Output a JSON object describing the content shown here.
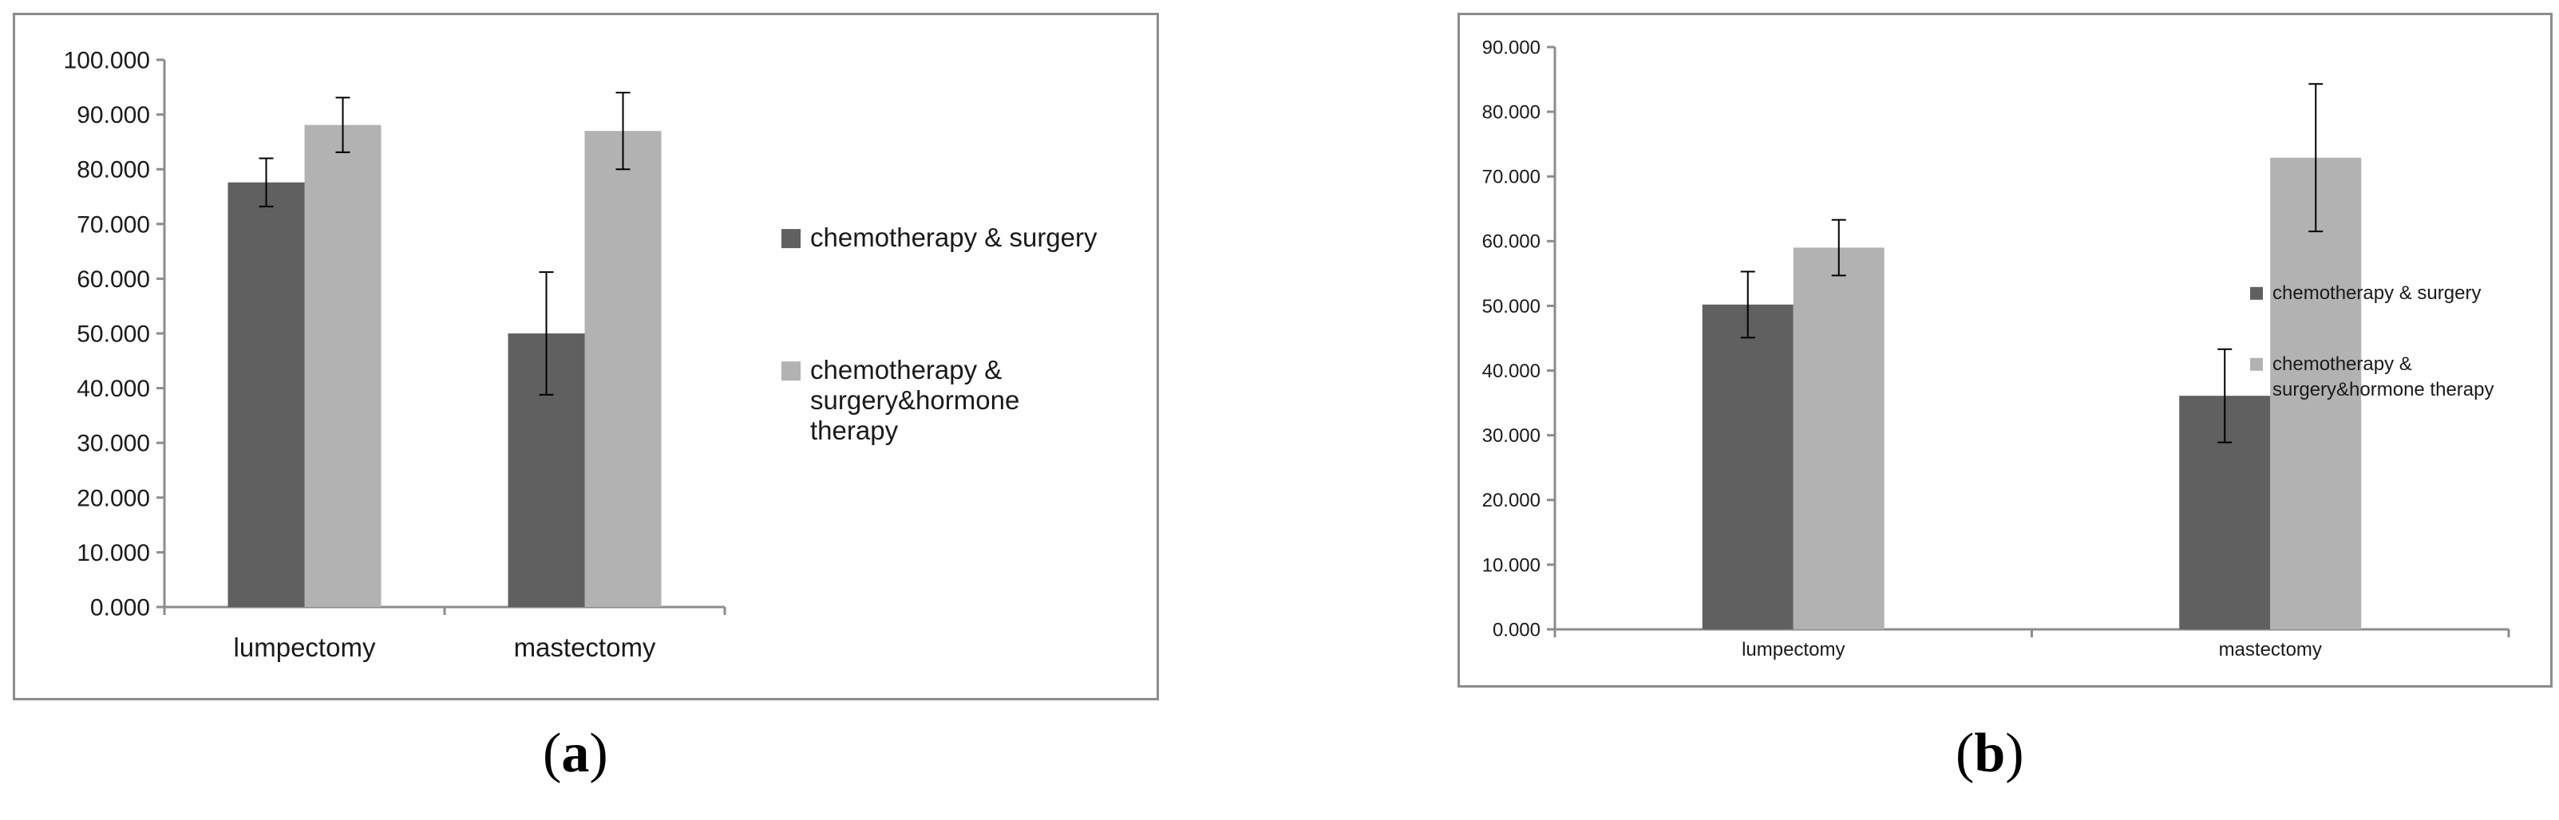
{
  "captions": [
    "(a)",
    "(b)"
  ],
  "chart_data": [
    {
      "type": "bar",
      "caption": "(a)",
      "categories": [
        "lumpectomy",
        "mastectomy"
      ],
      "series": [
        {
          "name": "chemotherapy & surgery",
          "color": "#606060",
          "values": [
            77.6,
            50.0
          ],
          "errors": [
            4.4,
            11.2
          ]
        },
        {
          "name": "chemotherapy & surgery&hormone therapy",
          "color": "#b2b2b2",
          "values": [
            88.1,
            87.0
          ],
          "errors": [
            5.0,
            7.0
          ]
        }
      ],
      "ylim": [
        0,
        100
      ],
      "yticks": [
        0,
        10,
        20,
        30,
        40,
        50,
        60,
        70,
        80,
        90,
        100
      ],
      "ytick_labels": [
        "0.000",
        "10.000",
        "20.000",
        "30.000",
        "40.000",
        "50.000",
        "60.000",
        "70.000",
        "80.000",
        "90.000",
        "100.000"
      ],
      "legend_labels": [
        [
          "chemotherapy & surgery"
        ],
        [
          "chemotherapy &",
          "surgery&hormone",
          "therapy"
        ]
      ],
      "legend": "right",
      "grid": false
    },
    {
      "type": "bar",
      "caption": "(b)",
      "categories": [
        "lumpectomy",
        "mastectomy"
      ],
      "series": [
        {
          "name": "chemotherapy & surgery",
          "color": "#606060",
          "values": [
            50.2,
            36.1
          ],
          "errors": [
            5.1,
            7.2
          ]
        },
        {
          "name": "chemotherapy & surgery&hormone therapy",
          "color": "#b2b2b2",
          "values": [
            59.0,
            72.9
          ],
          "errors": [
            4.3,
            11.4
          ]
        }
      ],
      "ylim": [
        0,
        90
      ],
      "yticks": [
        0,
        10,
        20,
        30,
        40,
        50,
        60,
        70,
        80,
        90
      ],
      "ytick_labels": [
        "0.000",
        "10.000",
        "20.000",
        "30.000",
        "40.000",
        "50.000",
        "60.000",
        "70.000",
        "80.000",
        "90.000"
      ],
      "legend_labels": [
        [
          "chemotherapy & surgery"
        ],
        [
          "chemotherapy &",
          "surgery&hormone therapy"
        ]
      ],
      "legend": "right",
      "grid": false
    }
  ]
}
